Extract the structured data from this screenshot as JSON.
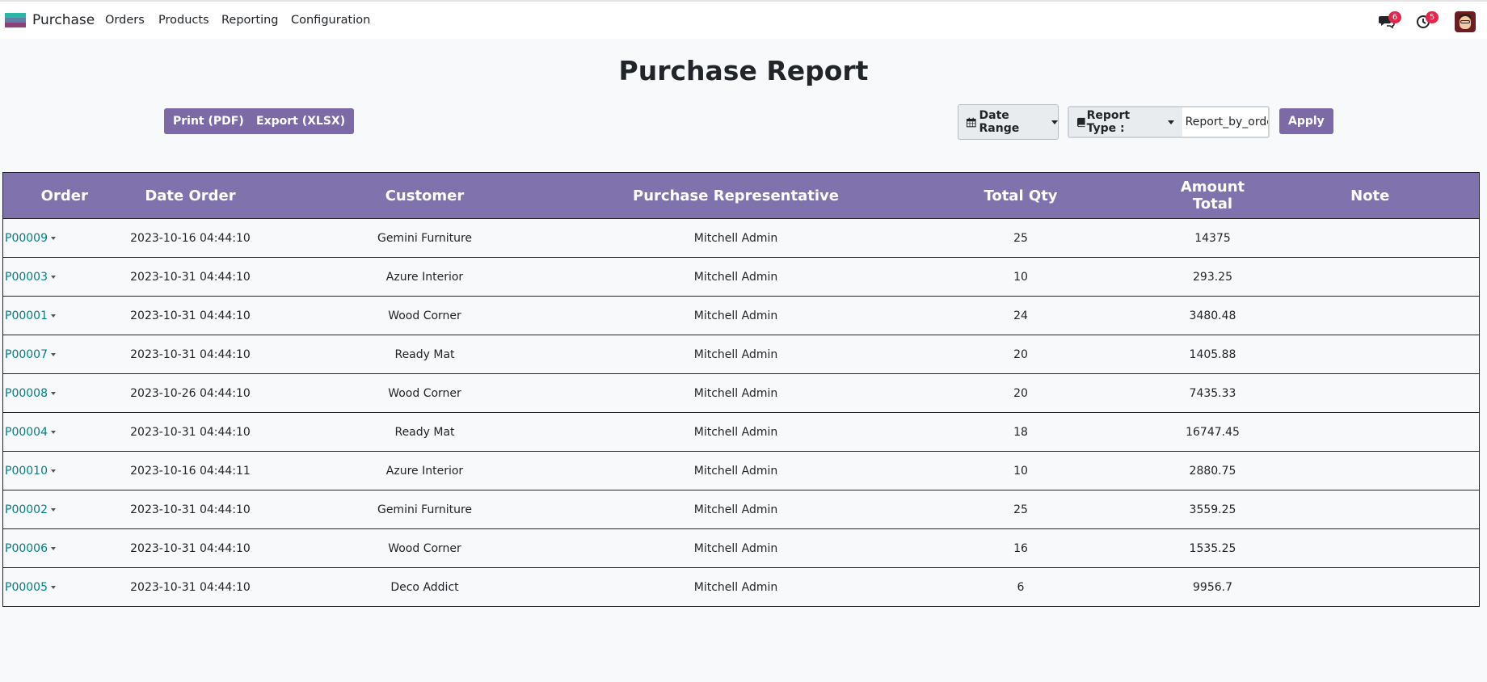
{
  "navbar": {
    "app_name": "Purchase",
    "menu": [
      "Orders",
      "Products",
      "Reporting",
      "Configuration"
    ],
    "messages_count": "6",
    "activities_count": "5"
  },
  "page": {
    "title": "Purchase Report"
  },
  "toolbar": {
    "print_label": "Print (PDF)",
    "export_label": "Export (XLSX)",
    "date_range_label": "Date Range",
    "report_type_label": "Report Type :",
    "report_type_value": "Report_by_order",
    "apply_label": "Apply"
  },
  "table": {
    "headers": [
      "Order",
      "Date Order",
      "Customer",
      "Purchase Representative",
      "Total Qty",
      "Amount Total",
      "Note"
    ],
    "rows": [
      {
        "order": "P00009",
        "date": "2023-10-16 04:44:10",
        "customer": "Gemini Furniture",
        "rep": "Mitchell Admin",
        "qty": "25",
        "amount": "14375",
        "note": ""
      },
      {
        "order": "P00003",
        "date": "2023-10-31 04:44:10",
        "customer": "Azure Interior",
        "rep": "Mitchell Admin",
        "qty": "10",
        "amount": "293.25",
        "note": ""
      },
      {
        "order": "P00001",
        "date": "2023-10-31 04:44:10",
        "customer": "Wood Corner",
        "rep": "Mitchell Admin",
        "qty": "24",
        "amount": "3480.48",
        "note": ""
      },
      {
        "order": "P00007",
        "date": "2023-10-31 04:44:10",
        "customer": "Ready Mat",
        "rep": "Mitchell Admin",
        "qty": "20",
        "amount": "1405.88",
        "note": ""
      },
      {
        "order": "P00008",
        "date": "2023-10-26 04:44:10",
        "customer": "Wood Corner",
        "rep": "Mitchell Admin",
        "qty": "20",
        "amount": "7435.33",
        "note": ""
      },
      {
        "order": "P00004",
        "date": "2023-10-31 04:44:10",
        "customer": "Ready Mat",
        "rep": "Mitchell Admin",
        "qty": "18",
        "amount": "16747.45",
        "note": ""
      },
      {
        "order": "P00010",
        "date": "2023-10-16 04:44:11",
        "customer": "Azure Interior",
        "rep": "Mitchell Admin",
        "qty": "10",
        "amount": "2880.75",
        "note": ""
      },
      {
        "order": "P00002",
        "date": "2023-10-31 04:44:10",
        "customer": "Gemini Furniture",
        "rep": "Mitchell Admin",
        "qty": "25",
        "amount": "3559.25",
        "note": ""
      },
      {
        "order": "P00006",
        "date": "2023-10-31 04:44:10",
        "customer": "Wood Corner",
        "rep": "Mitchell Admin",
        "qty": "16",
        "amount": "1535.25",
        "note": ""
      },
      {
        "order": "P00005",
        "date": "2023-10-31 04:44:10",
        "customer": "Deco Addict",
        "rep": "Mitchell Admin",
        "qty": "6",
        "amount": "9956.7",
        "note": ""
      }
    ]
  },
  "colors": {
    "accent": "#7f72ad",
    "button": "#7c6aa6",
    "link": "#017e84",
    "badge": "#e0264a"
  },
  "icons": [
    "app-logo-icon",
    "calendar-icon",
    "book-icon",
    "chat-icon",
    "clock-icon",
    "caret-down-icon"
  ]
}
